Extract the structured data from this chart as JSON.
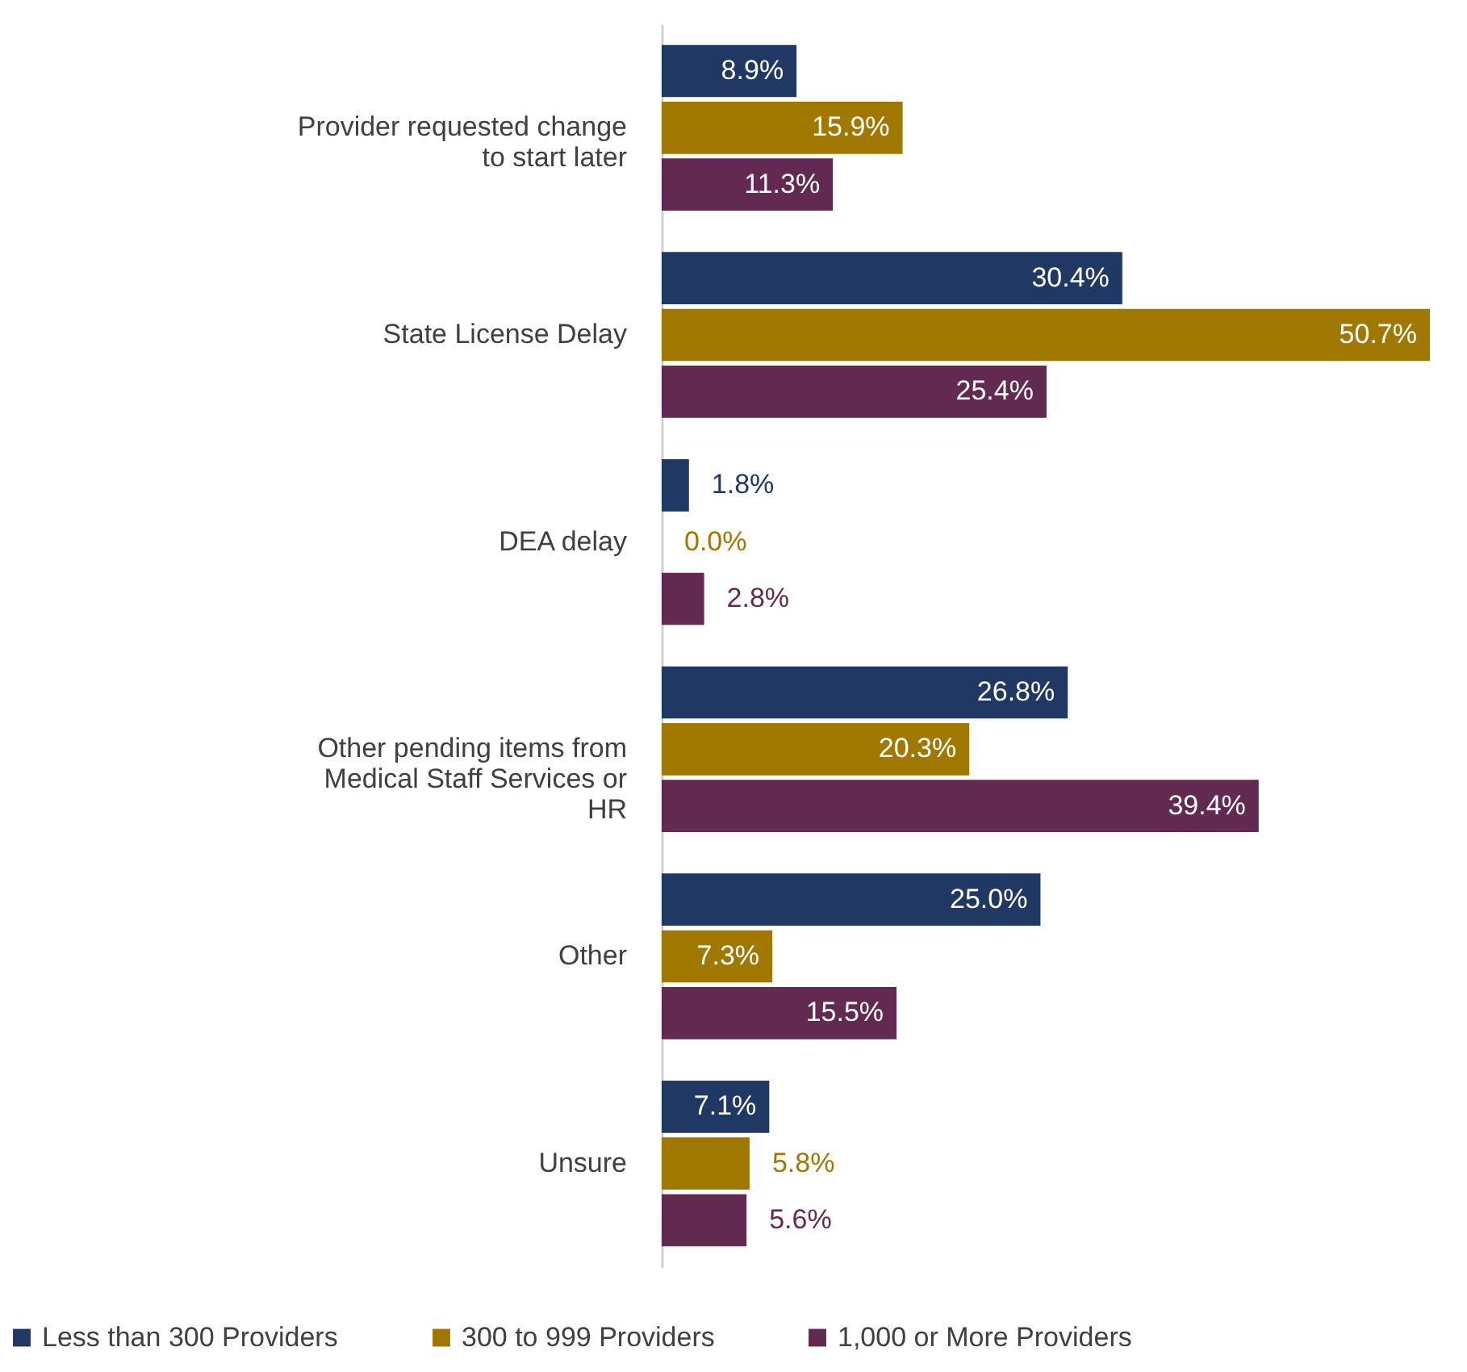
{
  "chart_data": {
    "type": "bar",
    "orientation": "horizontal",
    "categories": [
      "Provider requested change to start later",
      "State License Delay",
      "DEA delay",
      "Other pending items from Medical Staff Services or HR",
      "Other",
      "Unsure"
    ],
    "series": [
      {
        "name": "Less than 300 Providers",
        "color": "#1f3864",
        "values": [
          8.9,
          30.4,
          1.8,
          26.8,
          25.0,
          7.1
        ],
        "value_labels": [
          "8.9%",
          "30.4%",
          "1.8%",
          "26.8%",
          "25.0%",
          "7.1%"
        ]
      },
      {
        "name": "300 to 999 Providers",
        "color": "#a07800",
        "values": [
          15.9,
          50.7,
          0.0,
          20.3,
          7.3,
          5.8
        ],
        "value_labels": [
          "15.9%",
          "50.7%",
          "0.0%",
          "20.3%",
          "7.3%",
          "5.8%"
        ]
      },
      {
        "name": "1,000 or More Providers",
        "color": "#622a50",
        "values": [
          11.3,
          25.4,
          2.8,
          39.4,
          15.5,
          5.6
        ],
        "value_labels": [
          "11.3%",
          "25.4%",
          "2.8%",
          "39.4%",
          "15.5%",
          "5.6%"
        ]
      }
    ],
    "legend": "bottom",
    "grid": false
  }
}
